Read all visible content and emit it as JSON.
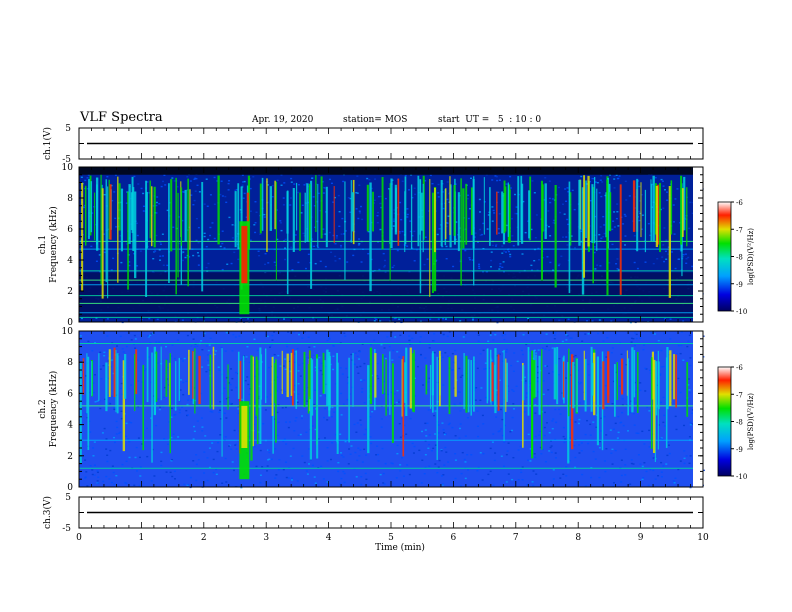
{
  "header": {
    "title": "VLF Spectra",
    "date": "Apr. 19, 2020",
    "station": "station= MOS",
    "start": "start  UT =   5  : 10 : 0"
  },
  "chart_data": [
    {
      "type": "line",
      "ylabel": "ch.1(V)",
      "ylim": [
        -5,
        5
      ],
      "yticks": [
        "5",
        "-5"
      ],
      "xlim": [
        0,
        10
      ],
      "series_value": 0
    },
    {
      "type": "heatmap",
      "ylabel_top": "ch.1",
      "ylabel": "Frequency (kHz)",
      "ylim": [
        0,
        10
      ],
      "yticks": [
        "0",
        "2",
        "4",
        "6",
        "8",
        "10"
      ],
      "xlim": [
        0,
        10
      ],
      "colorbar": {
        "label": "log(PSD)(V²/Hz)",
        "range": [
          -10,
          -6
        ],
        "ticks": [
          "-6",
          "-7",
          "-8",
          "-9",
          "-10"
        ]
      },
      "features": {
        "sferic_band_khz": [
          4.5,
          9.5
        ],
        "strong_burst_min": 2.65,
        "burst_band_khz": [
          0.5,
          6.5
        ],
        "horizontal_lines_khz": [
          0.3,
          0.6,
          1.2,
          1.7,
          2.4,
          2.7,
          3.3,
          4.7,
          5.2
        ]
      }
    },
    {
      "type": "heatmap",
      "ylabel_top": "ch.2",
      "ylabel": "Frequency (kHz)",
      "ylim": [
        0,
        10
      ],
      "yticks": [
        "0",
        "2",
        "4",
        "6",
        "8",
        "10"
      ],
      "xlim": [
        0,
        10
      ],
      "colorbar": {
        "label": "log(PSD)(V²/Hz)",
        "range": [
          -10,
          -6
        ],
        "ticks": [
          "-6",
          "-7",
          "-8",
          "-9",
          "-10"
        ]
      },
      "features": {
        "sferic_band_khz": [
          4.5,
          9.0
        ],
        "strong_burst_min": 2.65,
        "burst_band_khz": [
          0.5,
          5.5
        ],
        "horizontal_lines_khz": [
          1.2,
          3.0,
          5.2,
          9.2
        ]
      }
    },
    {
      "type": "line",
      "ylabel": "ch.3(V)",
      "ylim": [
        -5,
        5
      ],
      "yticks": [
        "5",
        "-5"
      ],
      "xlim": [
        0,
        10
      ],
      "xlabel": "Time (min)",
      "xticks": [
        "0",
        "1",
        "2",
        "3",
        "4",
        "5",
        "6",
        "7",
        "8",
        "9",
        "10"
      ],
      "series_value": 0
    }
  ]
}
